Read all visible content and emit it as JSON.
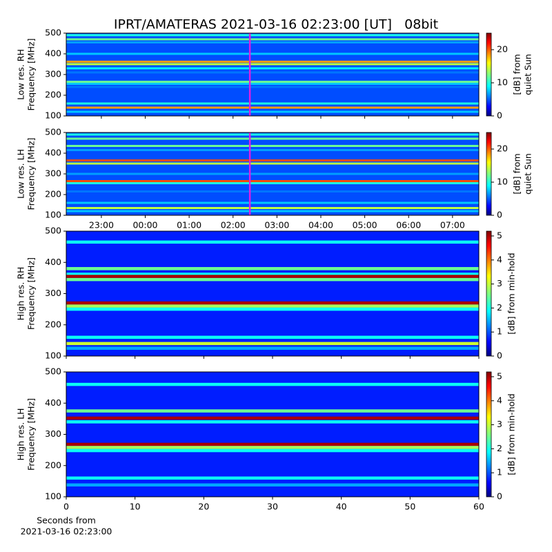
{
  "chart_data": [
    {
      "type": "heatmap",
      "title": "IPRT/AMATERAS 2021-03-16 02:23:00 [UT]   08bit",
      "ylabel": [
        "Low res. RH",
        "Frequency [MHz]"
      ],
      "ylim": [
        100,
        500
      ],
      "yticks": [
        100,
        200,
        300,
        400,
        500
      ],
      "xlim": [
        22.2,
        31.6
      ],
      "cursor": 26.383,
      "cursor_color": "#e020e0",
      "background": 5,
      "frequencies": [
        490,
        470,
        455,
        400,
        362,
        350,
        330,
        310,
        265,
        255,
        240,
        160,
        140,
        120
      ],
      "values": [
        10,
        12,
        7,
        8,
        18,
        14,
        9,
        6,
        12,
        8,
        6,
        10,
        18,
        8
      ],
      "clim": [
        0,
        25
      ],
      "cticks": [
        0,
        10,
        20
      ],
      "clabel": [
        "[dB] from",
        "quiet Sun"
      ]
    },
    {
      "type": "heatmap",
      "ylabel": [
        "Low res. LH",
        "Frequency [MHz]"
      ],
      "ylim": [
        100,
        500
      ],
      "yticks": [
        100,
        200,
        300,
        400,
        500
      ],
      "xlim": [
        22.2,
        31.6
      ],
      "cursor": 26.383,
      "cursor_color": "#e020e0",
      "xticks": [
        {
          "value": 23,
          "label": "23:00"
        },
        {
          "value": 24,
          "label": "00:00"
        },
        {
          "value": 25,
          "label": "01:00"
        },
        {
          "value": 26,
          "label": "02:00"
        },
        {
          "value": 27,
          "label": "03:00"
        },
        {
          "value": 28,
          "label": "04:00"
        },
        {
          "value": 29,
          "label": "05:00"
        },
        {
          "value": 30,
          "label": "06:00"
        },
        {
          "value": 31,
          "label": "07:00"
        }
      ],
      "background": 5,
      "frequencies": [
        490,
        470,
        435,
        415,
        365,
        350,
        300,
        265,
        255,
        215,
        160,
        135,
        120
      ],
      "values": [
        10,
        12,
        12,
        7,
        20,
        14,
        7,
        20,
        10,
        6,
        8,
        14,
        8
      ],
      "clim": [
        0,
        25
      ],
      "cticks": [
        0,
        10,
        20
      ],
      "clabel": [
        "[dB] from",
        "quiet Sun"
      ]
    },
    {
      "type": "heatmap",
      "ylabel": [
        "High res. RH",
        "Frequency [MHz]"
      ],
      "ylim": [
        100,
        500
      ],
      "yticks": [
        100,
        200,
        300,
        400,
        500
      ],
      "xlim": [
        0,
        60
      ],
      "background": 0.8,
      "frequencies": [
        465,
        380,
        362,
        355,
        345,
        270,
        260,
        250,
        160,
        140,
        125
      ],
      "values": [
        2,
        2.5,
        2,
        5,
        2.5,
        5,
        2.8,
        2,
        2,
        3,
        1.5
      ],
      "clim": [
        0,
        5.2
      ],
      "cticks": [
        0,
        1,
        2,
        3,
        4,
        5
      ],
      "clabel": [
        "[dB] from min-hold"
      ]
    },
    {
      "type": "heatmap",
      "ylabel": [
        "High res. LH",
        "Frequency [MHz]"
      ],
      "ylim": [
        100,
        500
      ],
      "yticks": [
        100,
        200,
        300,
        400,
        500
      ],
      "xlim": [
        0,
        60
      ],
      "xticks": [
        0,
        10,
        20,
        30,
        40,
        50,
        60
      ],
      "xlabel": [
        "Seconds from",
        "2021-03-16 02:23:00"
      ],
      "background": 0.8,
      "frequencies": [
        460,
        375,
        352,
        340,
        268,
        258,
        248,
        160,
        138
      ],
      "values": [
        2,
        2.5,
        5,
        2,
        5,
        2.8,
        2,
        2,
        1.5
      ],
      "clim": [
        0,
        5.2
      ],
      "cticks": [
        0,
        1,
        2,
        3,
        4,
        5
      ],
      "clabel": [
        "[dB] from min-hold"
      ]
    }
  ]
}
